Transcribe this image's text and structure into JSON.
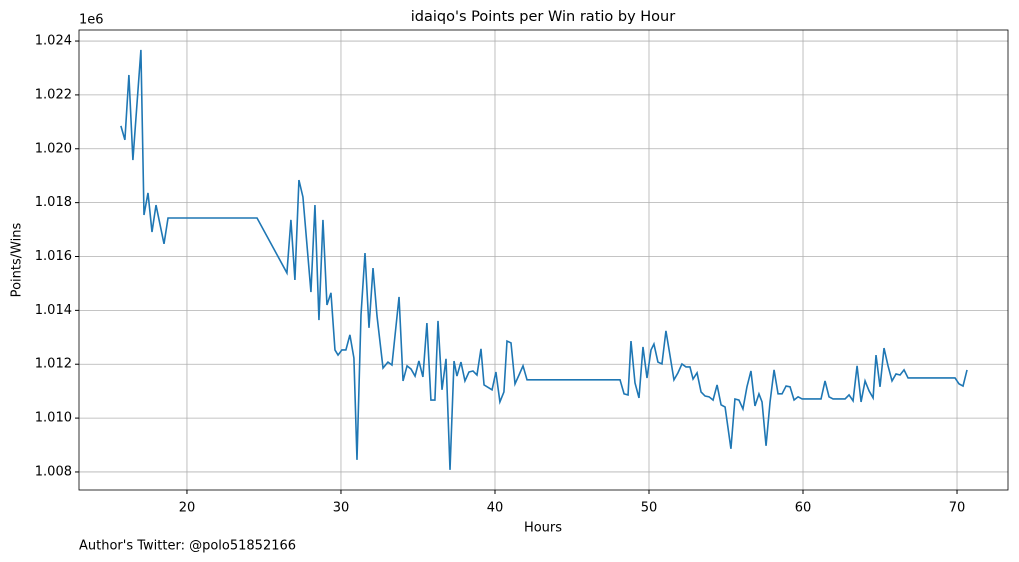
{
  "chart_data": {
    "type": "line",
    "title": "idaiqo's Points per Win ratio by Hour",
    "x_label": "Hours",
    "y_label": "Points/Wins",
    "y_offset_label": "1e6",
    "annotation": "Author's Twitter: @polo51852166",
    "grid": true,
    "xlim": [
      12.99,
      73.31
    ],
    "ylim": [
      1.00733,
      1.02441
    ],
    "xticks": [
      20,
      30,
      40,
      50,
      60,
      70
    ],
    "yticks": [
      {
        "value": 1.008,
        "label": "1.008"
      },
      {
        "value": 1.01,
        "label": "1.010"
      },
      {
        "value": 1.012,
        "label": "1.012"
      },
      {
        "value": 1.014,
        "label": "1.014"
      },
      {
        "value": 1.016,
        "label": "1.016"
      },
      {
        "value": 1.018,
        "label": "1.018"
      },
      {
        "value": 1.02,
        "label": "1.020"
      },
      {
        "value": 1.022,
        "label": "1.022"
      },
      {
        "value": 1.024,
        "label": "1.024"
      }
    ],
    "x": [
      15.71,
      15.97,
      16.23,
      16.49,
      17.01,
      17.21,
      17.47,
      17.73,
      17.99,
      18.51,
      18.77,
      24.55,
      26.49,
      26.75,
      27.01,
      27.27,
      27.53,
      28.05,
      28.31,
      28.57,
      28.83,
      29.09,
      29.35,
      29.61,
      29.81,
      30.06,
      30.32,
      30.58,
      30.84,
      31.04,
      31.3,
      31.56,
      31.82,
      32.08,
      32.34,
      32.73,
      33.05,
      33.31,
      33.77,
      34.03,
      34.29,
      34.55,
      34.81,
      35.06,
      35.32,
      35.58,
      35.84,
      36.1,
      36.3,
      36.56,
      36.82,
      37.08,
      37.34,
      37.53,
      37.79,
      38.05,
      38.31,
      38.57,
      38.83,
      39.09,
      39.29,
      39.81,
      40.06,
      40.32,
      40.58,
      40.78,
      41.04,
      41.3,
      41.56,
      41.82,
      42.08,
      48.12,
      48.38,
      48.64,
      48.83,
      49.09,
      49.35,
      49.61,
      49.87,
      50.13,
      50.32,
      50.58,
      50.84,
      51.1,
      51.36,
      51.62,
      51.88,
      52.14,
      52.4,
      52.66,
      52.86,
      53.12,
      53.38,
      53.64,
      53.9,
      54.16,
      54.42,
      54.68,
      54.94,
      55.32,
      55.58,
      55.84,
      56.1,
      56.36,
      56.62,
      56.88,
      57.14,
      57.34,
      57.6,
      57.86,
      58.12,
      58.38,
      58.64,
      58.9,
      59.16,
      59.42,
      59.68,
      59.94,
      61.17,
      61.43,
      61.69,
      61.95,
      62.73,
      62.99,
      63.25,
      63.51,
      63.77,
      64.03,
      64.29,
      64.55,
      64.74,
      65.0,
      65.26,
      65.52,
      65.78,
      66.04,
      66.3,
      66.56,
      66.82,
      69.87,
      70.13,
      70.39,
      70.65
    ],
    "series": [
      {
        "color": "#1f77b4",
        "values": [
          1.02085,
          1.02033,
          1.02274,
          1.01958,
          1.02367,
          1.01754,
          1.01836,
          1.01691,
          1.01791,
          1.01647,
          1.01743,
          1.01743,
          1.01539,
          1.01736,
          1.01513,
          1.01884,
          1.01821,
          1.01468,
          1.01791,
          1.01364,
          1.01736,
          1.0142,
          1.01465,
          1.01253,
          1.01234,
          1.01253,
          1.01253,
          1.01309,
          1.01223,
          1.00845,
          1.01383,
          1.01613,
          1.01335,
          1.01557,
          1.01379,
          1.01186,
          1.01208,
          1.01197,
          1.0145,
          1.01138,
          1.01194,
          1.01182,
          1.01156,
          1.01212,
          1.01153,
          1.01353,
          1.01067,
          1.01067,
          1.01361,
          1.01105,
          1.0122,
          1.00808,
          1.01212,
          1.01156,
          1.01208,
          1.01138,
          1.01171,
          1.01175,
          1.0116,
          1.01257,
          1.01123,
          1.01105,
          1.01171,
          1.0106,
          1.01097,
          1.01286,
          1.01279,
          1.01127,
          1.0116,
          1.01194,
          1.01142,
          1.01142,
          1.0109,
          1.01086,
          1.01286,
          1.01131,
          1.01075,
          1.01264,
          1.01149,
          1.01253,
          1.01275,
          1.01208,
          1.01201,
          1.01324,
          1.01234,
          1.01142,
          1.01168,
          1.01201,
          1.0119,
          1.0119,
          1.01145,
          1.01168,
          1.01097,
          1.01082,
          1.01079,
          1.01067,
          1.01123,
          1.01049,
          1.01041,
          1.00886,
          1.01071,
          1.01067,
          1.01034,
          1.01116,
          1.01175,
          1.01045,
          1.0109,
          1.0106,
          1.00897,
          1.0106,
          1.01179,
          1.0109,
          1.0109,
          1.01119,
          1.01116,
          1.01067,
          1.01079,
          1.01071,
          1.01071,
          1.01138,
          1.01079,
          1.01071,
          1.01071,
          1.01086,
          1.01064,
          1.01194,
          1.0106,
          1.01138,
          1.01101,
          1.01075,
          1.01234,
          1.01116,
          1.0126,
          1.01194,
          1.01138,
          1.01164,
          1.0116,
          1.01179,
          1.01149,
          1.01149,
          1.01127,
          1.01119,
          1.01179
        ]
      }
    ]
  }
}
